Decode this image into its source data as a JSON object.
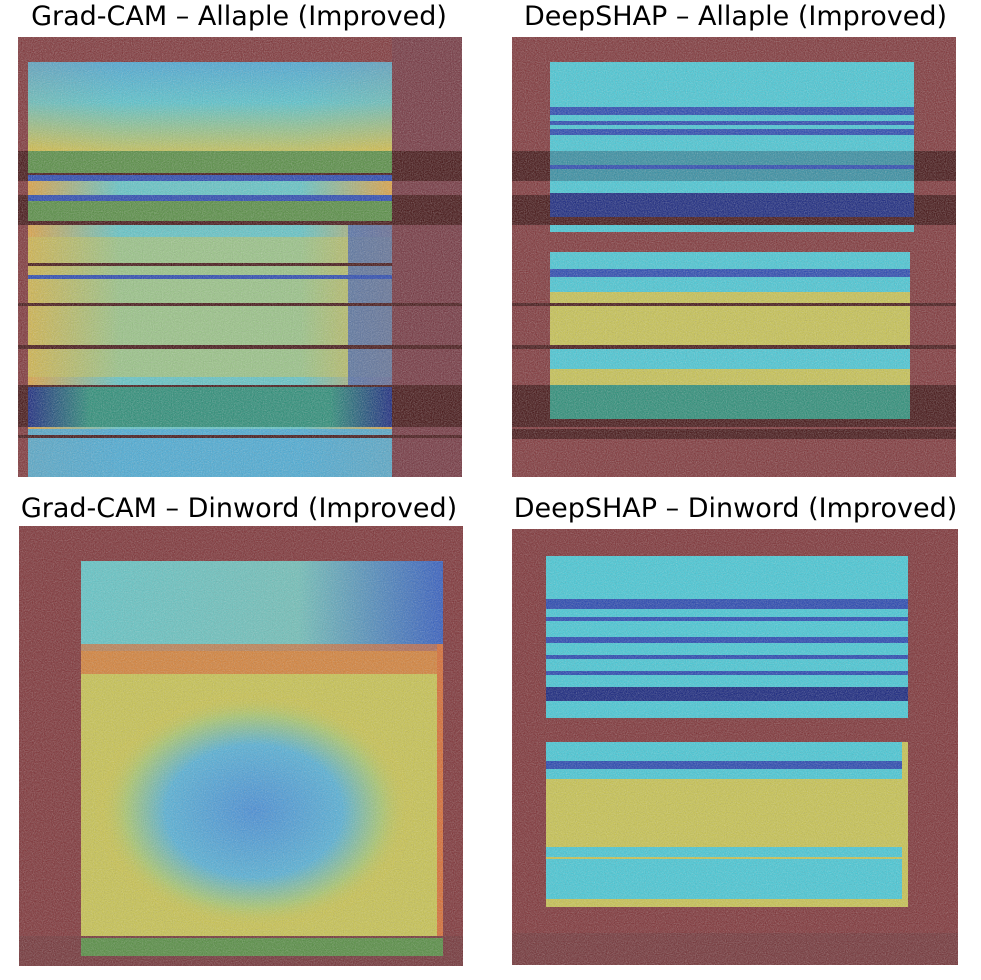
{
  "panels": {
    "grad_cam_allaple": {
      "title": "Grad-CAM – Allaple (Improved)"
    },
    "deepshap_allaple": {
      "title": "DeepSHAP – Allaple (Improved)"
    },
    "grad_cam_dinword": {
      "title": "Grad-CAM – Dinword (Improved)"
    },
    "deepshap_dinword": {
      "title": "DeepSHAP – Dinword (Improved)"
    }
  },
  "colors": {
    "background_noise": "#7a2a2e",
    "dark_band": "#3a0506",
    "cyan": "#3fc9d8",
    "yellow": "#d9c23a",
    "orange": "#d9672a",
    "blue": "#1d3fb0",
    "navy": "#0b1a7a",
    "teal": "#1f8a72"
  }
}
